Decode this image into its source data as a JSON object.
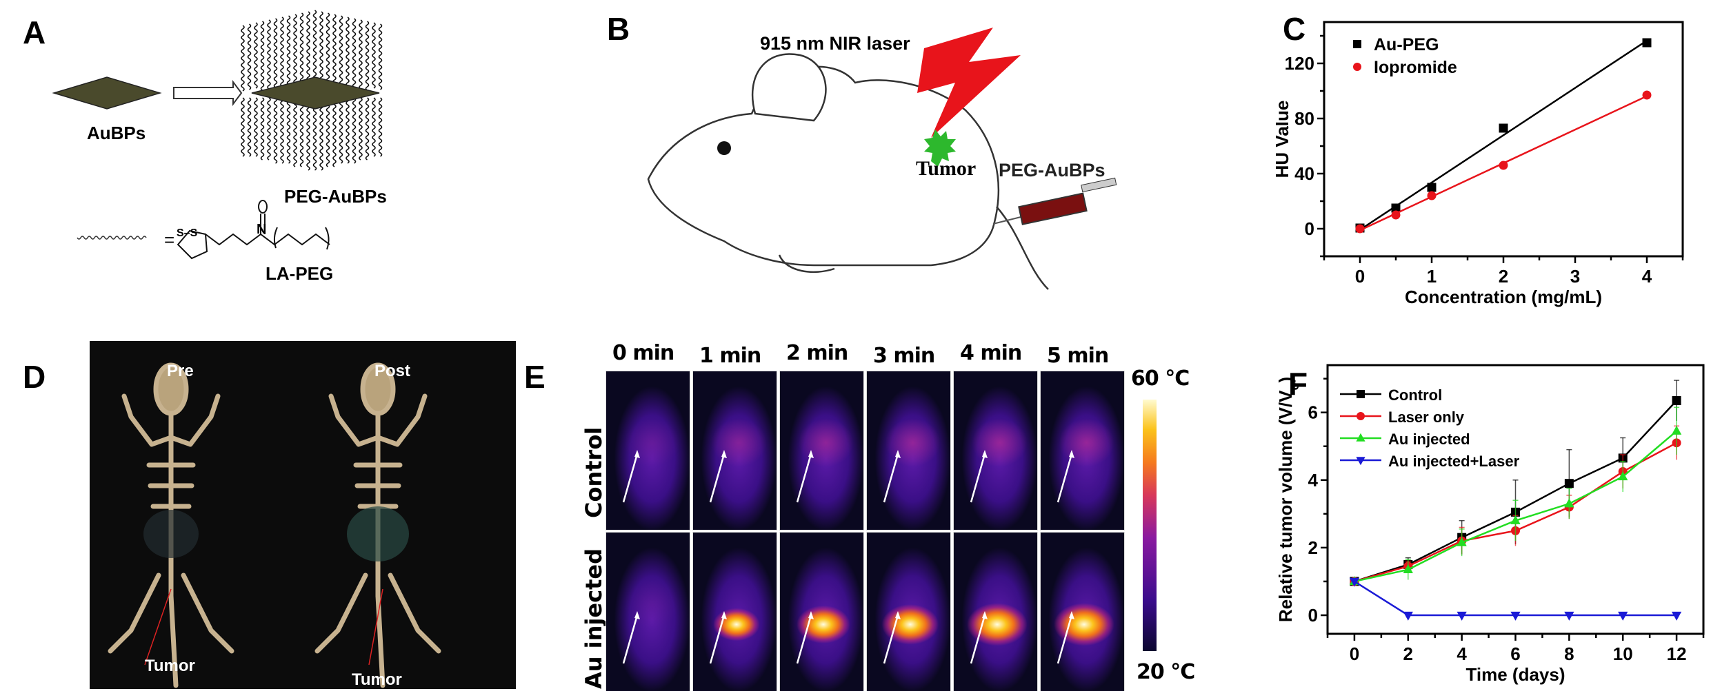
{
  "panels": {
    "A": {
      "label": "A",
      "aubps_label": "AuBPs",
      "peg_aubps_label": "PEG-AuBPs",
      "equals": "=",
      "la_peg_label": "LA-PEG",
      "particle_color": "#4a4a2c"
    },
    "B": {
      "label": "B",
      "laser_label": "915 nm NIR laser",
      "tumor_label": "Tumor",
      "injection_label": "PEG-AuBPs",
      "laser_color": "#e8141b",
      "tumor_color": "#2db82d"
    },
    "C": {
      "label": "C"
    },
    "D": {
      "label": "D",
      "pre_label": "Pre",
      "post_label": "Post",
      "tumor_label_left": "Tumor",
      "tumor_label_right": "Tumor"
    },
    "E": {
      "label": "E",
      "time_labels": [
        "0 min",
        "1 min",
        "2 min",
        "3 min",
        "4 min",
        "5 min"
      ],
      "row_labels": [
        "Control",
        "Au injected"
      ],
      "colorbar_max": "60 °C",
      "colorbar_min": "20 °C",
      "hotspot_intensity": {
        "control": [
          0.1,
          0.25,
          0.3,
          0.32,
          0.34,
          0.34
        ],
        "au_injected": [
          0.05,
          0.55,
          0.75,
          0.85,
          0.95,
          0.95
        ]
      }
    },
    "F": {
      "label": "F"
    }
  },
  "chart_data": [
    {
      "panel": "C",
      "type": "scatter",
      "xlabel": "Concentration (mg/mL)",
      "ylabel": "HU Value",
      "xlim": [
        -0.5,
        4.5
      ],
      "ylim": [
        -20,
        150
      ],
      "xticks": [
        0,
        1,
        2,
        3,
        4
      ],
      "yticks": [
        0,
        40,
        80,
        120
      ],
      "legend": "top-left",
      "grid": false,
      "series": [
        {
          "name": "Au-PEG",
          "marker": "square",
          "color": "#000000",
          "fit_line": true,
          "x": [
            0,
            0.5,
            1,
            2,
            4
          ],
          "y": [
            0.5,
            15,
            30,
            73,
            135
          ]
        },
        {
          "name": "Iopromide",
          "marker": "circle",
          "color": "#e8141b",
          "fit_line": true,
          "x": [
            0,
            0.5,
            1,
            2,
            4
          ],
          "y": [
            0,
            10,
            24,
            46,
            97
          ]
        }
      ]
    },
    {
      "panel": "F",
      "type": "line",
      "xlabel": "Time (days)",
      "ylabel": "Relative tumor volume (V/V",
      "ylabel_sub": "o",
      "ylabel_end": ")",
      "xlim": [
        -1,
        13
      ],
      "ylim": [
        -0.55,
        7.4
      ],
      "xticks": [
        0,
        2,
        4,
        6,
        8,
        10,
        12
      ],
      "yticks": [
        0,
        2,
        4,
        6
      ],
      "legend": "top-left",
      "grid": false,
      "x": [
        0,
        2,
        4,
        6,
        8,
        10,
        12
      ],
      "series": [
        {
          "name": "Control",
          "marker": "square",
          "color": "#000000",
          "y": [
            1,
            1.5,
            2.3,
            3.05,
            3.9,
            4.65,
            6.35
          ],
          "err": [
            0.05,
            0.2,
            0.5,
            0.95,
            1.0,
            0.6,
            0.6
          ]
        },
        {
          "name": "Laser only",
          "marker": "circle",
          "color": "#e8141b",
          "y": [
            1,
            1.45,
            2.2,
            2.5,
            3.2,
            4.25,
            5.1
          ],
          "err": [
            0.05,
            0.15,
            0.4,
            0.45,
            0.35,
            0.5,
            0.5
          ]
        },
        {
          "name": "Au injected",
          "marker": "triangle-up",
          "color": "#22dd22",
          "y": [
            1,
            1.35,
            2.15,
            2.8,
            3.3,
            4.1,
            5.45
          ],
          "err": [
            0.05,
            0.3,
            0.4,
            0.6,
            0.45,
            0.45,
            0.7
          ]
        },
        {
          "name": "Au injected+Laser",
          "marker": "triangle-down",
          "color": "#1a1ad6",
          "y": [
            1,
            0,
            0,
            0,
            0,
            0,
            0
          ],
          "err": [
            0.05,
            0,
            0,
            0,
            0,
            0,
            0
          ]
        }
      ]
    }
  ]
}
